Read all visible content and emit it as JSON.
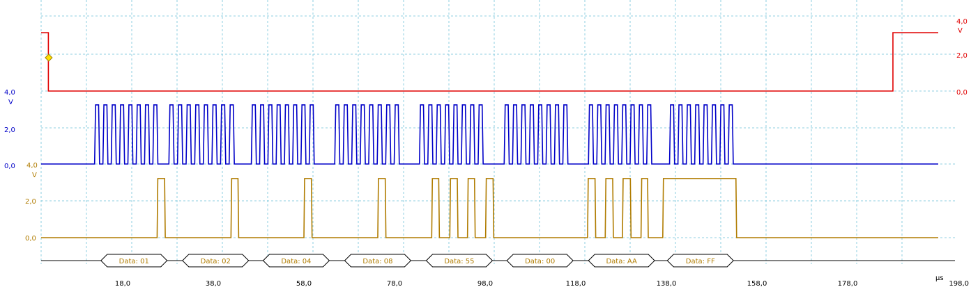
{
  "chart_data": {
    "type": "line",
    "x_axis": {
      "unit": "µs",
      "min": 0,
      "max": 198,
      "tick_labels": [
        "18,0",
        "38,0",
        "58,0",
        "78,0",
        "98,0",
        "118,0",
        "138,0",
        "158,0",
        "178,0",
        "198,0"
      ],
      "tick_values": [
        18,
        38,
        58,
        78,
        98,
        118,
        138,
        158,
        178,
        198
      ],
      "grid_step": 10,
      "grid": true
    },
    "channels": [
      {
        "id": "red",
        "color": "#e00000",
        "position": "right",
        "axis_labels": {
          "top": "4,0",
          "unit": "V",
          "mid": "2,0",
          "zero": "0,0"
        },
        "ylim": [
          0,
          4
        ],
        "segments": [
          [
            0,
            3.5
          ],
          [
            1.6,
            3.5
          ],
          [
            1.6,
            0
          ],
          [
            188,
            0
          ],
          [
            188,
            3.5
          ],
          [
            198,
            3.5
          ]
        ],
        "trigger_marker_time": 1.6
      },
      {
        "id": "blue",
        "color": "#0000c8",
        "position": "left",
        "axis_labels": {
          "top": "4,0",
          "unit": "V",
          "mid": "2,0",
          "zero": "0,0"
        },
        "ylim": [
          0,
          4
        ],
        "clock_groups": [
          [
            11.8,
            26.5
          ],
          [
            28.2,
            43.4
          ],
          [
            46.4,
            61.0
          ],
          [
            64.8,
            79.8
          ],
          [
            83.5,
            98.3
          ],
          [
            102.2,
            117.0
          ],
          [
            120.8,
            135.5
          ],
          [
            138.7,
            153.5
          ]
        ],
        "pulses_per_group": 8,
        "high": 3.5,
        "low": 0
      },
      {
        "id": "gold",
        "color": "#b07c00",
        "position": "left",
        "axis_labels": {
          "top": "4,0",
          "unit": "V",
          "mid": "2,0",
          "zero": "0,0"
        },
        "ylim": [
          0,
          4
        ],
        "high": 3.5,
        "low": 0,
        "pulses": [
          [
            25.6,
            27.4
          ],
          [
            41.9,
            43.6
          ],
          [
            58.0,
            59.8
          ],
          [
            74.3,
            76.1
          ],
          [
            86.2,
            87.9
          ],
          [
            90.2,
            92.0
          ],
          [
            94.1,
            95.8
          ],
          [
            98.1,
            99.9
          ],
          [
            120.6,
            122.4
          ],
          [
            124.5,
            126.3
          ],
          [
            128.3,
            130.2
          ],
          [
            132.4,
            134.0
          ],
          [
            137.2,
            153.5
          ]
        ]
      }
    ],
    "decode": {
      "labels": [
        "Data: 01",
        "Data: 02",
        "Data: 04",
        "Data: 08",
        "Data: 55",
        "Data: 00",
        "Data: AA",
        "Data: FF"
      ],
      "frames": [
        [
          13.2,
          27.8
        ],
        [
          31.2,
          45.8
        ],
        [
          49.0,
          63.6
        ],
        [
          67.0,
          81.6
        ],
        [
          85.0,
          99.6
        ],
        [
          102.8,
          117.4
        ],
        [
          120.8,
          135.4
        ],
        [
          138.2,
          152.8
        ]
      ]
    }
  }
}
